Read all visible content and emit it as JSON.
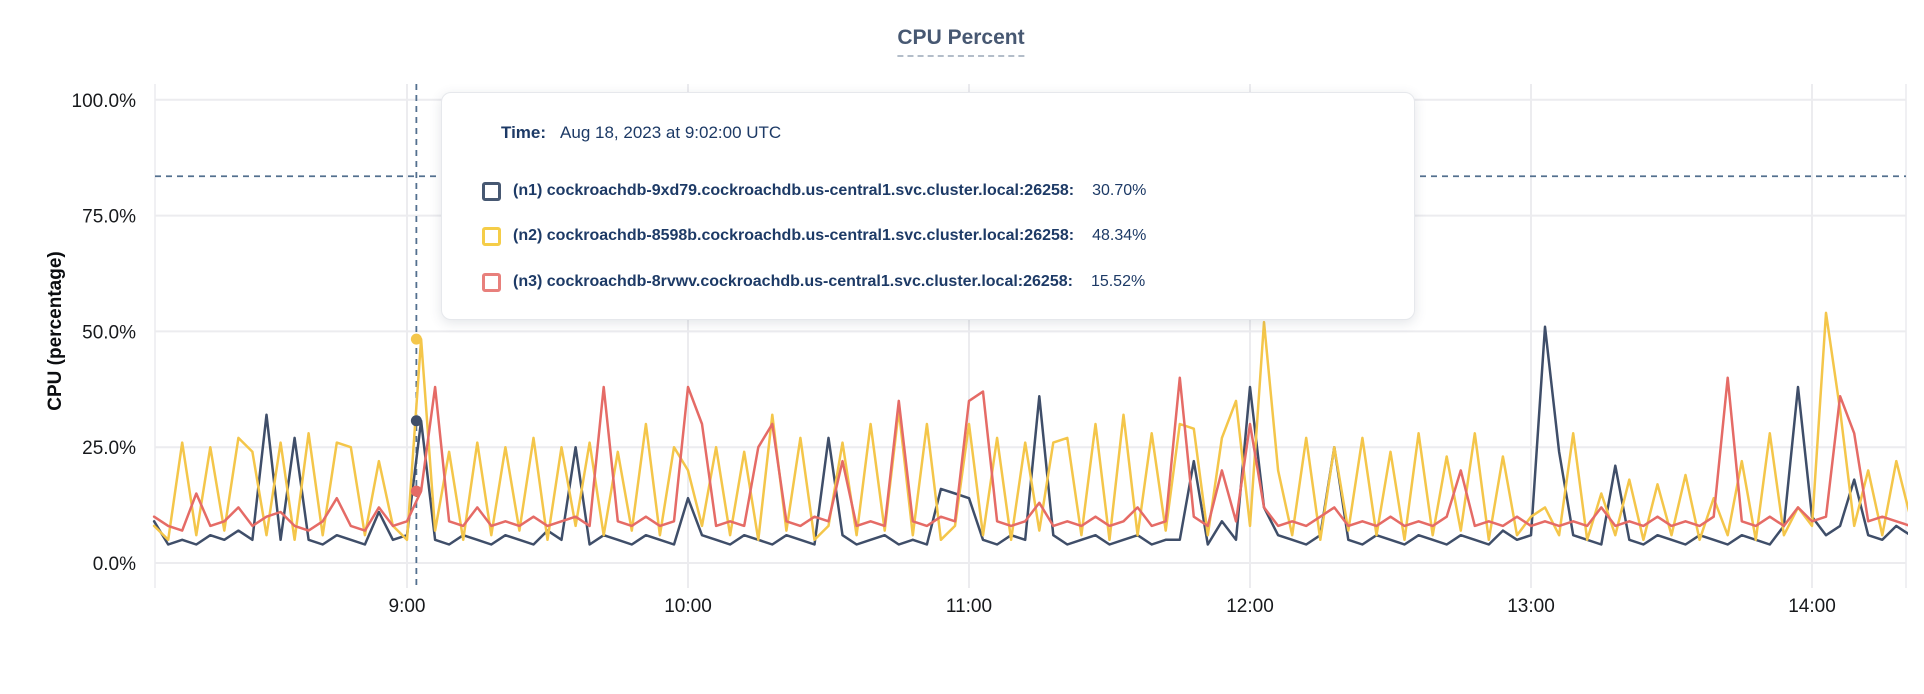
{
  "title": "CPU Percent",
  "y_axis_title": "CPU (percentage)",
  "tooltip": {
    "time_label": "Time:",
    "time_value": "Aug 18, 2023 at 9:02:00 UTC",
    "rows": [
      {
        "label": "(n1) cockroachdb-9xd79.cockroachdb.us-central1.svc.cluster.local:26258:",
        "value": "30.70%",
        "swatch_color": "#475872"
      },
      {
        "label": "(n2) cockroachdb-8598b.cockroachdb.us-central1.svc.cluster.local:26258:",
        "value": "48.34%",
        "swatch_color": "#f5cd48"
      },
      {
        "label": "(n3) cockroachdb-8rvwv.cockroachdb.us-central1.svc.cluster.local:26258:",
        "value": "15.52%",
        "swatch_color": "#e8807c"
      }
    ]
  },
  "chart_data": {
    "type": "line",
    "title": "CPU Percent",
    "xlabel": "",
    "ylabel": "CPU (percentage)",
    "ylim": [
      0,
      100
    ],
    "grid": true,
    "grid_color": "#ececef",
    "axis_text_color": "#17191c",
    "y_ticks": [
      {
        "label": "0.0%",
        "value": 0
      },
      {
        "label": "25.0%",
        "value": 25
      },
      {
        "label": "50.0%",
        "value": 50
      },
      {
        "label": "75.0%",
        "value": 75
      },
      {
        "label": "100.0%",
        "value": 100
      }
    ],
    "x_ticks": [
      {
        "label": "9:00",
        "minutes": 540
      },
      {
        "label": "10:00",
        "minutes": 600
      },
      {
        "label": "11:00",
        "minutes": 660
      },
      {
        "label": "12:00",
        "minutes": 720
      },
      {
        "label": "13:00",
        "minutes": 780
      },
      {
        "label": "14:00",
        "minutes": 840
      }
    ],
    "start_minutes": 486,
    "step_minutes": 3,
    "crosshair": {
      "time_label": "9:02",
      "time_minutes": 542,
      "mouse_y_percent": 83.5,
      "color": "#53708f"
    },
    "hover_points": [
      {
        "series_index": 0,
        "value": 30.7
      },
      {
        "series_index": 1,
        "value": 48.34
      },
      {
        "series_index": 2,
        "value": 15.52
      }
    ],
    "series": [
      {
        "id": "n1",
        "name": "(n1) cockroachdb-9xd79.cockroachdb.us-central1.svc.cluster.local:26258",
        "color": "#3f4e69",
        "values": [
          9,
          4,
          5,
          4,
          6,
          5,
          7,
          5,
          32,
          5,
          27,
          5,
          4,
          6,
          5,
          4,
          11,
          5,
          6,
          30.7,
          5,
          4,
          6,
          5,
          4,
          6,
          5,
          4,
          7,
          5,
          25,
          4,
          6,
          5,
          4,
          6,
          5,
          4,
          14,
          6,
          5,
          4,
          6,
          5,
          4,
          6,
          5,
          4,
          27,
          6,
          4,
          5,
          6,
          4,
          5,
          4,
          16,
          15,
          14,
          5,
          4,
          6,
          5,
          36,
          6,
          4,
          5,
          6,
          4,
          5,
          6,
          4,
          5,
          5,
          22,
          4,
          9,
          5,
          38,
          12,
          6,
          5,
          4,
          6,
          25,
          5,
          4,
          6,
          5,
          4,
          6,
          5,
          4,
          6,
          5,
          4,
          7,
          5,
          6,
          51,
          24,
          6,
          5,
          4,
          21,
          5,
          4,
          6,
          5,
          4,
          6,
          5,
          4,
          6,
          5,
          4,
          8,
          38,
          10,
          6,
          8,
          18,
          6,
          5,
          8,
          6
        ]
      },
      {
        "id": "n2",
        "name": "(n2) cockroachdb-8598b.cockroachdb.us-central1.svc.cluster.local:26258",
        "color": "#f4c64a",
        "values": [
          8,
          5,
          26,
          6,
          25,
          7,
          27,
          24,
          6,
          26,
          5,
          28,
          6,
          26,
          25,
          6,
          22,
          8,
          5,
          48.34,
          7,
          24,
          5,
          26,
          6,
          25,
          7,
          27,
          5,
          25,
          8,
          26,
          6,
          24,
          7,
          30,
          6,
          25,
          20,
          8,
          25,
          6,
          24,
          5,
          32,
          7,
          27,
          5,
          8,
          26,
          6,
          30,
          7,
          33,
          6,
          30,
          5,
          8,
          30,
          6,
          27,
          5,
          26,
          7,
          26,
          27,
          6,
          30,
          5,
          32,
          6,
          28,
          7,
          30,
          29,
          6,
          27,
          35,
          8,
          52,
          20,
          6,
          27,
          5,
          25,
          7,
          27,
          6,
          24,
          5,
          28,
          6,
          23,
          7,
          28,
          5,
          23,
          6,
          10,
          12,
          6,
          28,
          5,
          15,
          6,
          18,
          5,
          17,
          6,
          19,
          5,
          14,
          6,
          22,
          5,
          28,
          6,
          12,
          8,
          54,
          33,
          8,
          20,
          6,
          22,
          10
        ]
      },
      {
        "id": "n3",
        "name": "(n3) cockroachdb-8rvwv.cockroachdb.us-central1.svc.cluster.local:26258",
        "color": "#e56b66",
        "values": [
          10,
          8,
          7,
          15,
          8,
          9,
          12,
          8,
          10,
          11,
          8,
          7,
          9,
          14,
          8,
          7,
          12,
          8,
          9,
          15.52,
          38,
          9,
          8,
          12,
          8,
          9,
          8,
          10,
          8,
          9,
          10,
          8,
          38,
          9,
          8,
          10,
          8,
          9,
          38,
          30,
          8,
          9,
          8,
          25,
          30,
          9,
          8,
          10,
          9,
          22,
          8,
          9,
          8,
          35,
          9,
          8,
          10,
          9,
          35,
          37,
          9,
          8,
          9,
          13,
          8,
          9,
          8,
          10,
          8,
          9,
          12,
          8,
          9,
          40,
          10,
          8,
          20,
          9,
          30,
          12,
          8,
          9,
          8,
          10,
          12,
          8,
          9,
          8,
          10,
          8,
          9,
          8,
          10,
          20,
          8,
          9,
          8,
          10,
          8,
          9,
          8,
          9,
          8,
          12,
          8,
          9,
          8,
          10,
          8,
          9,
          8,
          10,
          40,
          9,
          8,
          10,
          8,
          12,
          9,
          10,
          36,
          28,
          9,
          10,
          9,
          8
        ]
      }
    ]
  }
}
